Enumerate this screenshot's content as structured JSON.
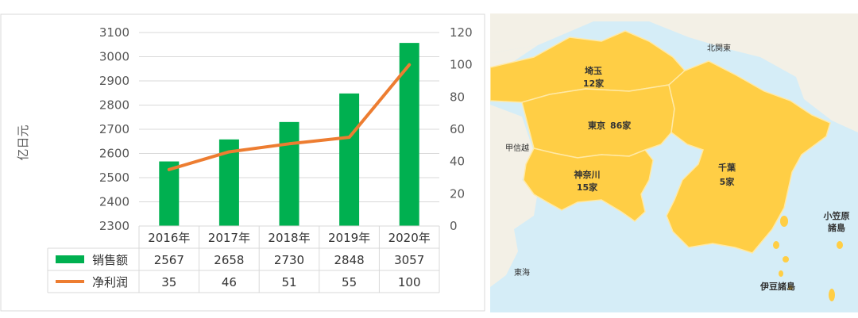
{
  "chart_data": {
    "type": "bar",
    "categories": [
      "2016年",
      "2017年",
      "2018年",
      "2019年",
      "2020年"
    ],
    "series": [
      {
        "name": "销售额",
        "type": "bar",
        "axis": "left",
        "values": [
          2567,
          2658,
          2730,
          2848,
          3057
        ],
        "color": "#00B050"
      },
      {
        "name": "净利润",
        "type": "line",
        "axis": "right",
        "values": [
          35,
          46,
          51,
          55,
          100
        ],
        "color": "#ED7D31"
      }
    ],
    "ylabel": "亿日元",
    "ylim": [
      2300,
      3100
    ],
    "yticks": [
      2300,
      2400,
      2500,
      2600,
      2700,
      2800,
      2900,
      3000,
      3100
    ],
    "y2lim": [
      0,
      120
    ],
    "y2ticks": [
      0,
      20,
      40,
      60,
      80,
      100,
      120
    ],
    "grid": true,
    "data_table": true
  },
  "map": {
    "regions": [
      {
        "name": "埼玉",
        "count": "12家"
      },
      {
        "name": "東京",
        "count": "86家"
      },
      {
        "name": "神奈川",
        "count": "15家"
      },
      {
        "name": "千葉",
        "count": "5家"
      }
    ],
    "surrounding": [
      "北関東",
      "甲信越",
      "東海",
      "伊豆諸島"
    ],
    "islands_label": [
      "小笠原",
      "諸島"
    ],
    "colors": {
      "land": "#FFCE45",
      "sea": "#D5EDF7",
      "outer_land": "#F3F0E6"
    }
  }
}
